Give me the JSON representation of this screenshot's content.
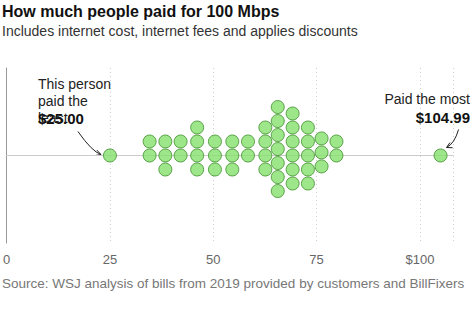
{
  "chart_data": {
    "type": "scatter",
    "title": "How much people paid for 100 Mbps",
    "subtitle": "Includes internet cost, internet fees and applies discounts",
    "values": [
      25,
      34.6,
      34.6,
      38.4,
      38.4,
      38.4,
      42.1,
      42.1,
      46.1,
      46.1,
      46.1,
      46.1,
      50.4,
      50.4,
      50.4,
      54.6,
      54.6,
      54.6,
      58.4,
      58.4,
      62.6,
      62.6,
      62.6,
      62.6,
      65.6,
      65.6,
      65.6,
      65.6,
      65.6,
      65.6,
      65.6,
      69.2,
      69.2,
      69.2,
      69.2,
      69.2,
      69.2,
      72.9,
      72.9,
      72.9,
      72.9,
      72.9,
      76.2,
      76.2,
      76.2,
      79.8,
      79.8,
      104.99
    ],
    "color": "#86e06d",
    "marker": "circle",
    "xlim": [
      0,
      108
    ],
    "xticks": [
      0,
      25,
      50,
      75,
      {
        "value": 100,
        "label": "$100"
      }
    ],
    "grid": true,
    "tick_labels": "x",
    "annotations": [
      {
        "text": "This person paid the least",
        "label": "$25.00",
        "x": 25
      },
      {
        "text": "Paid the most",
        "label": "$104.99",
        "x": 104.99
      }
    ],
    "source": "Source: WSJ analysis of bills from 2019 provided by customers and BillFixers"
  }
}
